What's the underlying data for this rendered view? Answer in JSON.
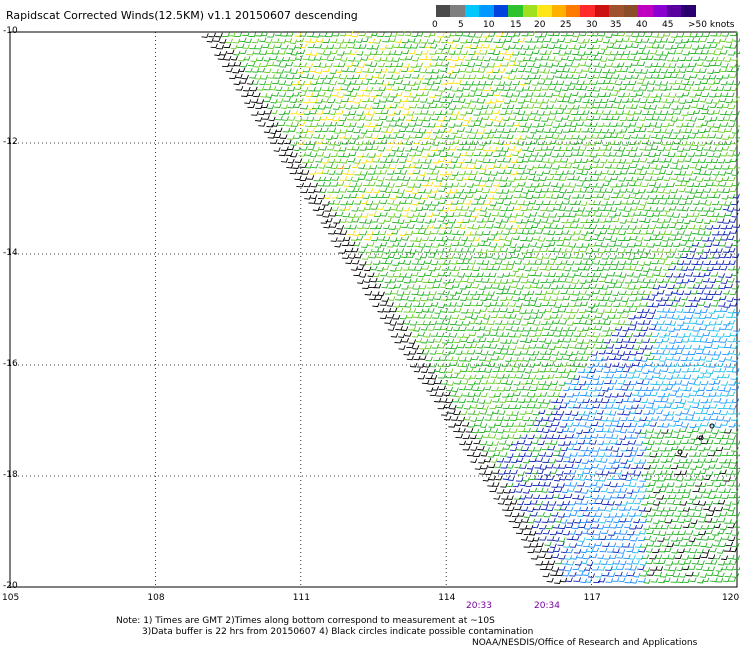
{
  "title": "Rapidscat Corrected Winds(12.5KM) v1.1 20150607 descending",
  "colorbar": {
    "colors": [
      "#4a4a4a",
      "#7f7f7f",
      "#00c8ff",
      "#0099ff",
      "#0044dd",
      "#2ec22e",
      "#9fe020",
      "#ffe61a",
      "#ffb000",
      "#ff7a00",
      "#ff2a2a",
      "#cc1111",
      "#a0522d",
      "#8b4c2a",
      "#c000c0",
      "#8a00d0",
      "#5a00a0",
      "#2a0070"
    ],
    "labels": [
      "0",
      "5",
      "10",
      "15",
      "20",
      "25",
      "30",
      "35",
      "40",
      "45",
      ">50 knots"
    ]
  },
  "axes": {
    "y_labels": [
      "-10",
      "-12",
      "-14",
      "-16",
      "-18",
      "-20"
    ],
    "x_labels": [
      "105",
      "108",
      "111",
      "114",
      "117",
      "120"
    ],
    "lat_range": [
      -20,
      -10
    ],
    "lon_range": [
      105,
      120
    ]
  },
  "swath_times": [
    "20:33",
    "20:34"
  ],
  "notes": [
    "Note: 1) Times are GMT 2)Times along bottom correspond to measurement at ~10S",
    "3)Data buffer is 22 hrs from 20150607 4) Black circles indicate possible contamination",
    "NOAA/NESDIS/Office of Research and Applications"
  ],
  "wind_colors": {
    "green": "#22b022",
    "lightgreen": "#66cc22",
    "yellow": "#ffe000",
    "orange": "#e08a00",
    "blue": "#0a1fb0",
    "lightblue": "#1e90ff",
    "cyan": "#20c0e8",
    "black": "#000000"
  }
}
